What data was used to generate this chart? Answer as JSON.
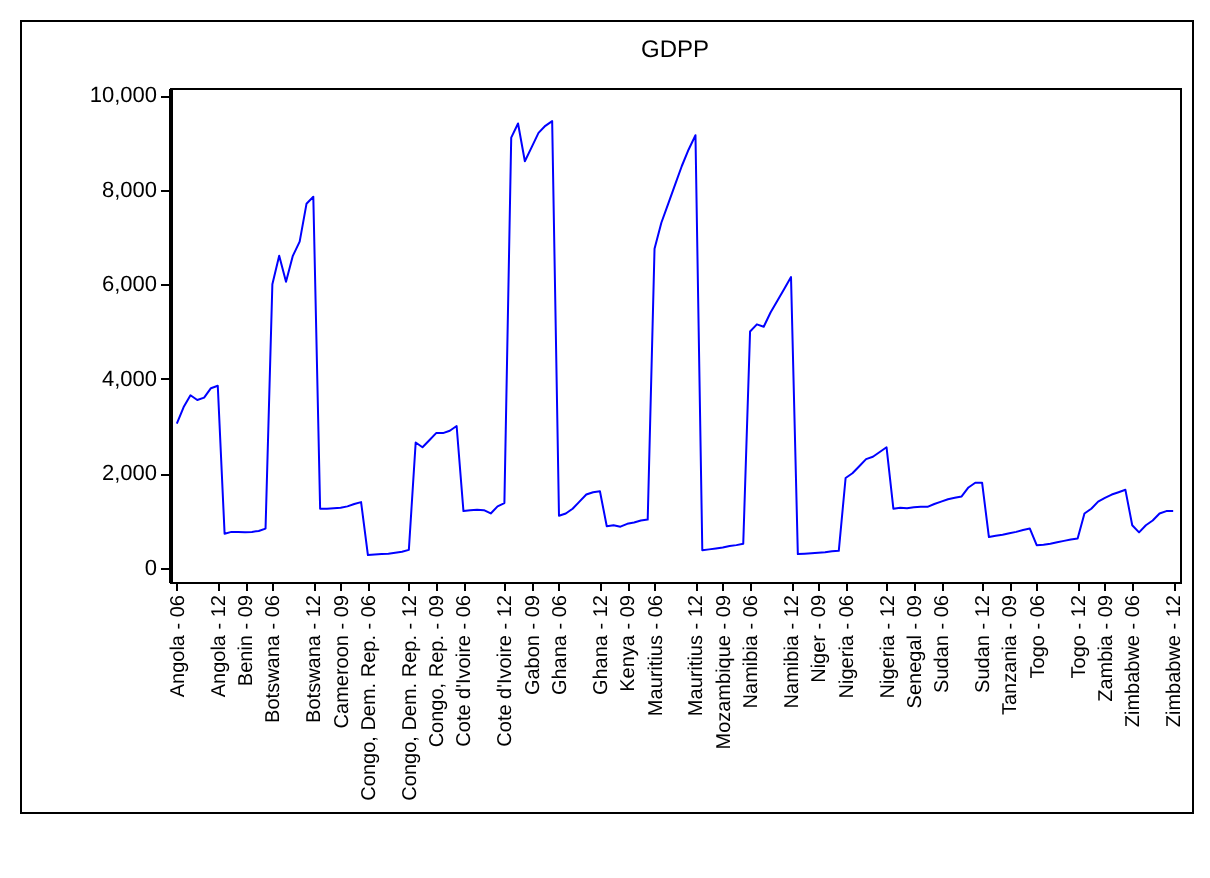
{
  "chart_data": {
    "type": "line",
    "title": "GDPP",
    "categories": [
      "Angola - 06",
      null,
      null,
      null,
      null,
      null,
      "Angola - 12",
      null,
      null,
      null,
      "Benin - 09",
      null,
      null,
      null,
      "Botswana - 06",
      null,
      null,
      null,
      null,
      null,
      "Botswana - 12",
      null,
      null,
      null,
      "Cameroon - 09",
      null,
      null,
      null,
      "Congo, Dem. Rep. - 06",
      null,
      null,
      null,
      null,
      null,
      "Congo, Dem. Rep. - 12",
      null,
      null,
      null,
      "Congo, Rep. - 09",
      null,
      null,
      null,
      "Cote d'Ivoire - 06",
      null,
      null,
      null,
      null,
      null,
      "Cote d'Ivoire - 12",
      null,
      null,
      null,
      "Gabon - 09",
      null,
      null,
      null,
      "Ghana - 06",
      null,
      null,
      null,
      null,
      null,
      "Ghana - 12",
      null,
      null,
      null,
      "Kenya - 09",
      null,
      null,
      null,
      "Mauritius - 06",
      null,
      null,
      null,
      null,
      null,
      "Mauritius - 12",
      null,
      null,
      null,
      "Mozambique - 09",
      null,
      null,
      null,
      "Namibia - 06",
      null,
      null,
      null,
      null,
      null,
      "Namibia - 12",
      null,
      null,
      null,
      "Niger - 09",
      null,
      null,
      null,
      "Nigeria - 06",
      null,
      null,
      null,
      null,
      null,
      "Nigeria - 12",
      null,
      null,
      null,
      "Senegal - 09",
      null,
      null,
      null,
      "Sudan - 06",
      null,
      null,
      null,
      null,
      null,
      "Sudan - 12",
      null,
      null,
      null,
      "Tanzania - 09",
      null,
      null,
      null,
      "Togo - 06",
      null,
      null,
      null,
      null,
      null,
      "Togo - 12",
      null,
      null,
      null,
      "Zambia - 09",
      null,
      null,
      null,
      "Zimbabwe - 06",
      null,
      null,
      null,
      null,
      null,
      "Zimbabwe - 12"
    ],
    "series": [
      {
        "color": "#0000ff",
        "values": [
          3050,
          3400,
          3650,
          3550,
          3600,
          3800,
          3850,
          720,
          760,
          760,
          750,
          760,
          780,
          830,
          6000,
          6600,
          6050,
          6600,
          6900,
          7700,
          7850,
          1250,
          1250,
          1260,
          1270,
          1300,
          1350,
          1390,
          270,
          280,
          290,
          300,
          320,
          340,
          380,
          2650,
          2550,
          2700,
          2850,
          2850,
          2900,
          3000,
          1200,
          1220,
          1230,
          1220,
          1150,
          1300,
          1370,
          9100,
          9400,
          8600,
          8900,
          9200,
          9350,
          9450,
          1100,
          1150,
          1250,
          1400,
          1550,
          1600,
          1620,
          880,
          900,
          870,
          930,
          960,
          1000,
          1020,
          6750,
          7300,
          7700,
          8100,
          8500,
          8850,
          9150,
          370,
          390,
          410,
          430,
          460,
          480,
          510,
          5000,
          5150,
          5100,
          5400,
          5650,
          5900,
          6150,
          290,
          300,
          310,
          320,
          330,
          350,
          360,
          1900,
          2000,
          2150,
          2300,
          2350,
          2450,
          2550,
          1250,
          1270,
          1260,
          1280,
          1290,
          1290,
          1350,
          1400,
          1450,
          1480,
          1510,
          1700,
          1800,
          1800,
          650,
          680,
          700,
          730,
          760,
          800,
          830,
          480,
          490,
          510,
          540,
          570,
          600,
          620,
          1150,
          1250,
          1400,
          1480,
          1550,
          1600,
          1650,
          900,
          750,
          900,
          1000,
          1150,
          1200,
          1200
        ]
      }
    ],
    "ylim": [
      -300,
      10150
    ],
    "yticks": [
      {
        "value": 0,
        "label": "0"
      },
      {
        "value": 2000,
        "label": "2,000"
      },
      {
        "value": 4000,
        "label": "4,000"
      },
      {
        "value": 6000,
        "label": "6,000"
      },
      {
        "value": 8000,
        "label": "8,000"
      },
      {
        "value": 10000,
        "label": "10,000"
      }
    ],
    "grid": false
  }
}
